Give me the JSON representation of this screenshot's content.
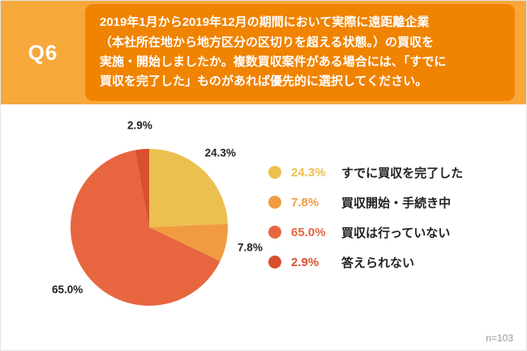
{
  "header": {
    "q_label": "Q6",
    "question_lines": [
      "2019年1月から2019年12月の期間において実際に遠距離企業",
      "（本社所在地から地方区分の区切りを超える状態。）の買収を",
      "実施・開始しましたか。複数買収案件がある場合には、「すでに",
      "買収を完了した」ものがあれば優先的に選択してください。"
    ]
  },
  "colors": {
    "header_bg": "#F6A83B",
    "question_bg": "#F08300",
    "text_on_orange": "#FFFFFF",
    "pie_label_text": "#222222",
    "note_text": "#999999"
  },
  "chart_data": {
    "type": "pie",
    "title": "",
    "direction": "clockwise",
    "start_angle": "top",
    "legend_position": "right",
    "note": "n=103",
    "slices": [
      {
        "label": "すでに買収を完了した",
        "value": 24.3,
        "display": "24.3%",
        "color": "#ECC04F"
      },
      {
        "label": "買収開始・手続き中",
        "value": 7.8,
        "display": "7.8%",
        "color": "#F19B41"
      },
      {
        "label": "買収は行っていない",
        "value": 65.0,
        "display": "65.0%",
        "color": "#E7663F"
      },
      {
        "label": "答えられない",
        "value": 2.9,
        "display": "2.9%",
        "color": "#D8502F"
      }
    ]
  }
}
